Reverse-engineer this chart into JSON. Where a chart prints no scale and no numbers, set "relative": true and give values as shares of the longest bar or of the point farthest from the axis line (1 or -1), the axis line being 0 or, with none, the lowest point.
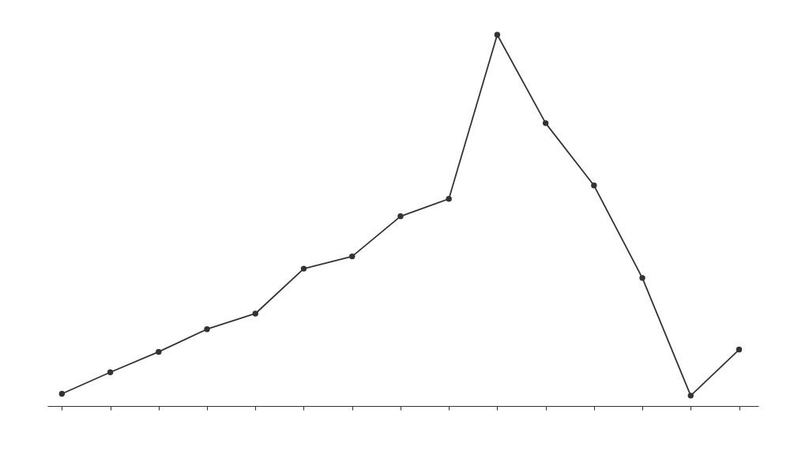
{
  "chart_data": {
    "type": "line",
    "relative": true,
    "marker": "circle",
    "line_style": "solid",
    "categories": [
      null,
      null,
      null,
      null,
      null,
      null,
      null,
      null,
      null,
      null,
      null,
      null,
      null,
      null,
      null
    ],
    "series": [
      {
        "color": "#333333",
        "values": [
          0.033,
          0.091,
          0.146,
          0.207,
          0.249,
          0.37,
          0.403,
          0.511,
          0.558,
          1,
          0.762,
          0.594,
          0.345,
          0.028,
          0.152
        ]
      }
    ]
  }
}
